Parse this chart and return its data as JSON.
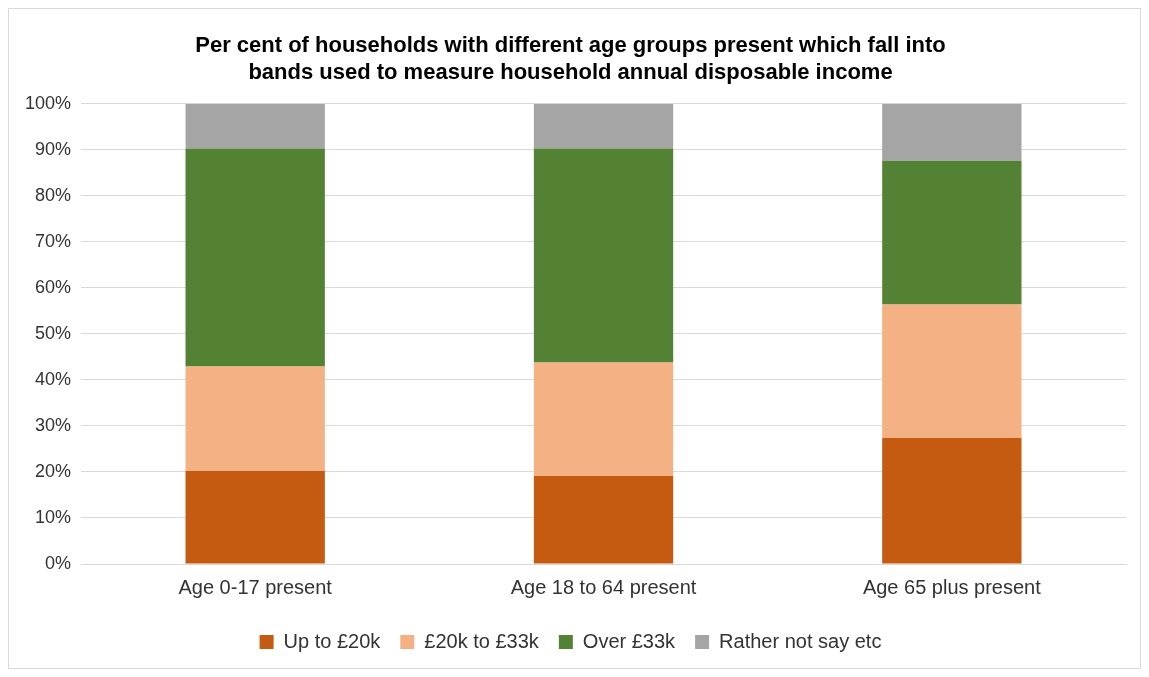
{
  "chart_data": {
    "type": "bar",
    "title": "Per cent of households with different age groups present which fall into bands used to measure household annual disposable income",
    "categories": [
      "Age 0-17 present",
      "Age 18 to 64 present",
      "Age 65 plus present"
    ],
    "stacked": true,
    "series": [
      {
        "name": "Up to £20k",
        "color": "#c55a11",
        "values": [
          20.2,
          19.1,
          27.4
        ]
      },
      {
        "name": "£20k to £33k",
        "color": "#f4b183",
        "values": [
          22.7,
          24.7,
          29.0
        ]
      },
      {
        "name": "Over £33k",
        "color": "#548235",
        "values": [
          47.4,
          46.5,
          31.2
        ]
      },
      {
        "name": "Rather not say etc",
        "color": "#a5a5a5",
        "values": [
          9.7,
          9.7,
          12.4
        ]
      }
    ],
    "ylim": [
      0,
      100
    ],
    "yticks": [
      {
        "value": 0,
        "label": "0%"
      },
      {
        "value": 10,
        "label": "10%"
      },
      {
        "value": 20,
        "label": "20%"
      },
      {
        "value": 30,
        "label": "30%"
      },
      {
        "value": 40,
        "label": "40%"
      },
      {
        "value": 50,
        "label": "50%"
      },
      {
        "value": 60,
        "label": "60%"
      },
      {
        "value": 70,
        "label": "70%"
      },
      {
        "value": 80,
        "label": "80%"
      },
      {
        "value": 90,
        "label": "90%"
      },
      {
        "value": 100,
        "label": "100%"
      }
    ],
    "grid": "y",
    "legend": "bottom"
  }
}
